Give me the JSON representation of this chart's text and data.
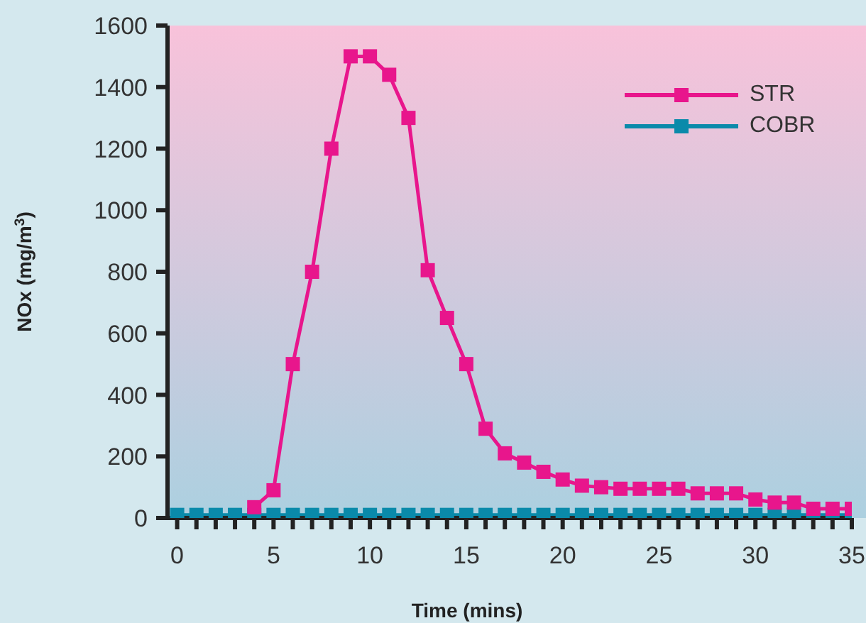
{
  "chart_data": {
    "type": "line",
    "xlabel": "Time (mins)",
    "ylabel": "NOx (mg/m$^{3}$)",
    "xlim": [
      -0.5,
      35
    ],
    "xticks": [
      0,
      {
        "value": 1,
        "label": null
      },
      {
        "value": 2,
        "label": null
      },
      {
        "value": 3,
        "label": null
      },
      {
        "value": 4,
        "label": null
      },
      5,
      {
        "value": 6,
        "label": null
      },
      {
        "value": 7,
        "label": null
      },
      {
        "value": 8,
        "label": null
      },
      {
        "value": 9,
        "label": null
      },
      10,
      {
        "value": 11,
        "label": null
      },
      {
        "value": 12,
        "label": null
      },
      {
        "value": 13,
        "label": null
      },
      {
        "value": 14,
        "label": null
      },
      15,
      {
        "value": 16,
        "label": null
      },
      {
        "value": 17,
        "label": null
      },
      {
        "value": 18,
        "label": null
      },
      {
        "value": 19,
        "label": null
      },
      20,
      {
        "value": 21,
        "label": null
      },
      {
        "value": 22,
        "label": null
      },
      {
        "value": 23,
        "label": null
      },
      {
        "value": 24,
        "label": null
      },
      25,
      {
        "value": 26,
        "label": null
      },
      {
        "value": 27,
        "label": null
      },
      {
        "value": 28,
        "label": null
      },
      {
        "value": 29,
        "label": null
      },
      30,
      {
        "value": 31,
        "label": null
      },
      {
        "value": 32,
        "label": null
      },
      {
        "value": 33,
        "label": null
      },
      {
        "value": 34,
        "label": null
      },
      35
    ],
    "ylim": [
      0,
      1600
    ],
    "yticks": [
      0,
      200,
      400,
      600,
      800,
      1000,
      1200,
      1400,
      1600
    ],
    "grid": false,
    "legend": "top right",
    "marker": "square",
    "line_style": "solid",
    "series": [
      {
        "name": "STR",
        "color": "#e8168c",
        "x": [
          4,
          5,
          6,
          7,
          8,
          9,
          10,
          11,
          12,
          13,
          14,
          15,
          16,
          17,
          18,
          19,
          20,
          21,
          22,
          23,
          24,
          25,
          26,
          27,
          28,
          29,
          30,
          31,
          32,
          33,
          34,
          35
        ],
        "values": [
          35,
          90,
          500,
          800,
          1200,
          1500,
          1500,
          1440,
          1300,
          805,
          650,
          500,
          290,
          210,
          180,
          150,
          125,
          105,
          100,
          95,
          95,
          95,
          95,
          80,
          80,
          80,
          60,
          50,
          50,
          30,
          30,
          30
        ]
      },
      {
        "name": "COBR",
        "color": "#0a8aaa",
        "x": [
          0,
          1,
          2,
          3,
          4,
          5,
          6,
          7,
          8,
          9,
          10,
          11,
          12,
          13,
          14,
          15,
          16,
          17,
          18,
          19,
          20,
          21,
          22,
          23,
          24,
          25,
          26,
          27,
          28,
          29,
          30,
          31,
          32,
          33,
          34,
          35
        ],
        "values": [
          10,
          10,
          10,
          10,
          10,
          10,
          10,
          10,
          10,
          10,
          10,
          10,
          10,
          10,
          10,
          10,
          10,
          10,
          10,
          10,
          10,
          10,
          10,
          10,
          10,
          10,
          10,
          10,
          10,
          10,
          10,
          10,
          10,
          10,
          10,
          10
        ]
      }
    ]
  }
}
